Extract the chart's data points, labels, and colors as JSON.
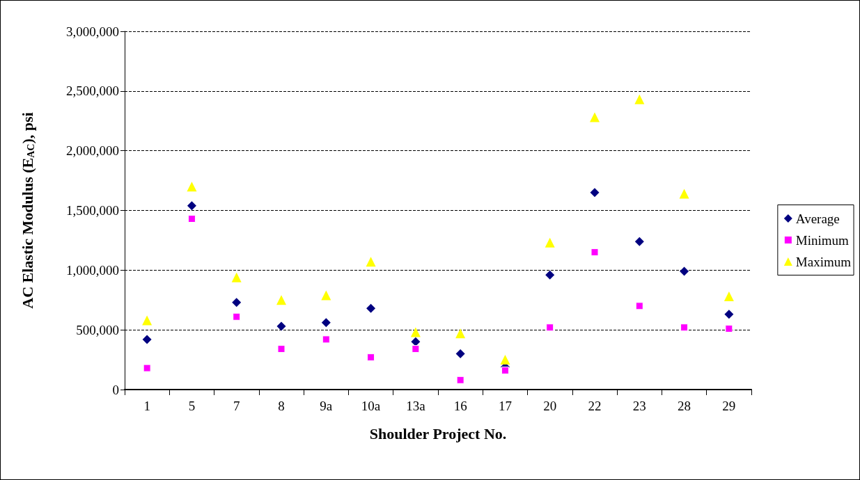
{
  "chart_data": {
    "type": "scatter",
    "xlabel": "Shoulder Project No.",
    "ylabel": "AC Elastic Modulus (E$_{AC}$), psi",
    "categories": [
      "1",
      "5",
      "7",
      "8",
      "9a",
      "10a",
      "13a",
      "16",
      "17",
      "20",
      "22",
      "23",
      "28",
      "29"
    ],
    "series": [
      {
        "name": "Average",
        "color": "#000080",
        "marker": "diamond",
        "values": [
          420000,
          1540000,
          730000,
          530000,
          560000,
          680000,
          400000,
          300000,
          190000,
          960000,
          1650000,
          1240000,
          990000,
          630000
        ]
      },
      {
        "name": "Minimum",
        "color": "#ff00ff",
        "marker": "square",
        "values": [
          180000,
          1430000,
          610000,
          340000,
          420000,
          270000,
          340000,
          80000,
          160000,
          520000,
          1150000,
          700000,
          520000,
          510000
        ]
      },
      {
        "name": "Maximum",
        "color": "#ffff00",
        "marker": "triangle",
        "values": [
          580000,
          1700000,
          940000,
          750000,
          790000,
          1070000,
          480000,
          470000,
          250000,
          1230000,
          2280000,
          2430000,
          1640000,
          780000
        ]
      }
    ],
    "ylim": [
      0,
      3000000
    ],
    "yticks": [
      0,
      {
        "value": 500000,
        "label": "500,000"
      },
      {
        "value": 1000000,
        "label": "1,000,000"
      },
      {
        "value": 1500000,
        "label": "1,500,000"
      },
      {
        "value": 2000000,
        "label": "2,000,000"
      },
      {
        "value": 2500000,
        "label": "2,500,000"
      },
      {
        "value": 3000000,
        "label": "3,000,000"
      }
    ],
    "grid": "y",
    "legend": "right"
  }
}
